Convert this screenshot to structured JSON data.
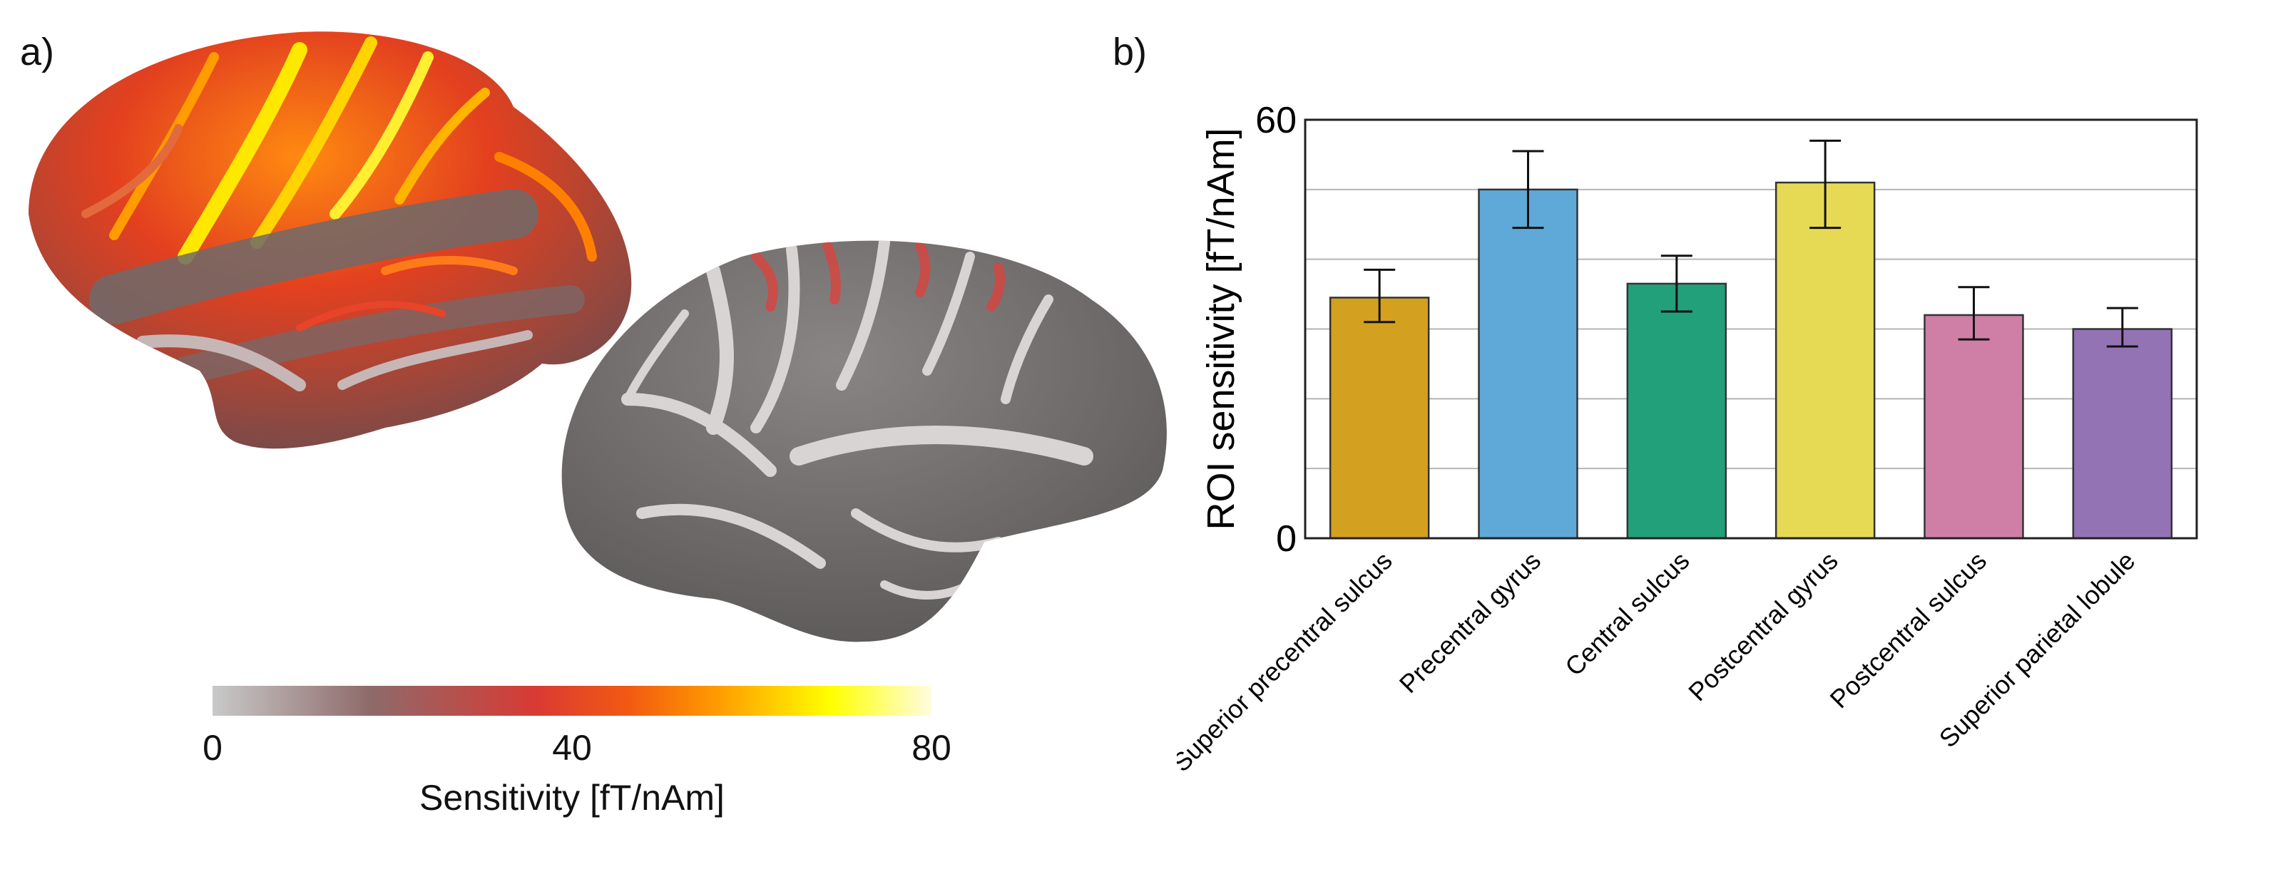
{
  "panels": {
    "a_label": "a)",
    "b_label": "b)"
  },
  "colorbar": {
    "ticks": [
      "0",
      "40",
      "80"
    ],
    "title": "Sensitivity [fT/nAm]",
    "colors": [
      "#c9c9c9",
      "#d93a33",
      "#ff9a00",
      "#ffff00",
      "#fffce0"
    ]
  },
  "chart_data": {
    "type": "bar",
    "categories": [
      "Superior precentral sulcus",
      "Precentral gyrus",
      "Central sulcus",
      "Postcentral gyrus",
      "Postcentral sulcus",
      "Superior parietal lobule"
    ],
    "values": [
      34.5,
      50,
      36.5,
      51,
      32,
      30
    ],
    "errors_low": [
      31,
      44.5,
      32.5,
      44.5,
      28.5,
      27.5
    ],
    "errors_high": [
      38.5,
      55.5,
      40.5,
      57,
      36,
      33
    ],
    "colors": [
      "#d4a020",
      "#5fa9d8",
      "#22a07a",
      "#e6da55",
      "#cf7fa6",
      "#9473b5"
    ],
    "ylabel": "ROI sensitivity [fT/nAm]",
    "yticks": [
      "0",
      "60"
    ],
    "ylim": [
      0,
      60
    ],
    "grid": true
  }
}
